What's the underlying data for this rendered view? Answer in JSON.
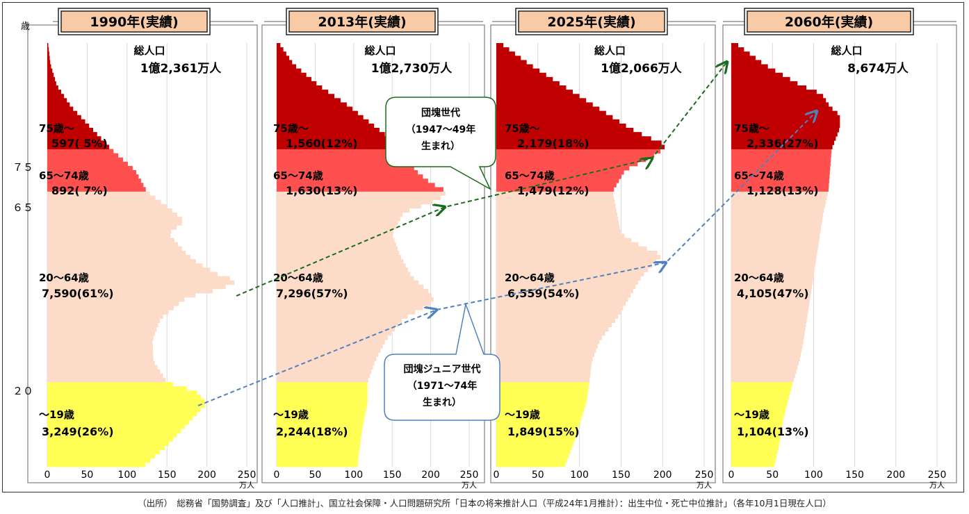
{
  "age_axis": {
    "unit": "歳",
    "ticks": [
      "７５",
      "６５",
      "２０"
    ]
  },
  "source_text": "（出所）　総務省「国勢調査」及び「人口推計」、国立社会保障・人口問題研究所「日本の将来推計人口（平成24年1月推計）：出生中位・死亡中位推計」（各年10月1日現在人口）",
  "callouts": {
    "dankai": [
      "団塊世代",
      "（1947～49年",
      "生まれ）"
    ],
    "dankai_junior": [
      "団塊ジュニア世代",
      "（1971～74年",
      "生まれ）"
    ]
  },
  "colors": {
    "age_75plus": "#C00000",
    "age_65_74": "#FF5050",
    "age_20_64": "#FCDCC8",
    "age_0_19": "#FFFF55",
    "dankai_arrow": "#1A6B1A",
    "junior_arrow": "#4F81BD",
    "title_fill": "#F8CBA6"
  },
  "chart_data": [
    {
      "type": "bar",
      "orientation": "horizontal",
      "title": "1990年(実績)",
      "total_label": "総人口",
      "total_value": "1億2,361万人",
      "x_ticks": [
        "0",
        "50",
        "100",
        "150",
        "200",
        "250"
      ],
      "x_unit": "万人",
      "xlim": [
        0,
        250
      ],
      "groups": [
        {
          "name": "75歳～",
          "value_label": "597( 5%)",
          "population": 597,
          "percent": 5
        },
        {
          "name": "65～74歳",
          "value_label": "892( 7%)",
          "population": 892,
          "percent": 7
        },
        {
          "name": "20～64歳",
          "value_label": "7,590(61%)",
          "population": 7590,
          "percent": 61
        },
        {
          "name": "～19歳",
          "value_label": "3,249(26%)",
          "population": 3249,
          "percent": 26
        }
      ],
      "profile": [
        [
          0,
          120
        ],
        [
          5,
          150
        ],
        [
          10,
          175
        ],
        [
          15,
          200
        ],
        [
          18,
          185
        ],
        [
          19,
          165
        ],
        [
          20,
          150
        ],
        [
          25,
          133
        ],
        [
          30,
          132
        ],
        [
          35,
          142
        ],
        [
          40,
          175
        ],
        [
          42,
          218
        ],
        [
          44,
          240
        ],
        [
          45,
          218
        ],
        [
          48,
          190
        ],
        [
          50,
          176
        ],
        [
          55,
          152
        ],
        [
          58,
          172
        ],
        [
          60,
          160
        ],
        [
          65,
          125
        ],
        [
          70,
          110
        ],
        [
          75,
          80
        ],
        [
          80,
          55
        ],
        [
          85,
          30
        ],
        [
          90,
          12
        ],
        [
          95,
          4
        ],
        [
          100,
          1
        ]
      ]
    },
    {
      "type": "bar",
      "orientation": "horizontal",
      "title": "2013年(実績)",
      "total_label": "総人口",
      "total_value": "1億2,730万人",
      "x_ticks": [
        "0",
        "50",
        "100",
        "150",
        "200",
        "250"
      ],
      "x_unit": "万人",
      "xlim": [
        0,
        250
      ],
      "groups": [
        {
          "name": "75歳～",
          "value_label": "1,560(12%)",
          "population": 1560,
          "percent": 12
        },
        {
          "name": "65～74歳",
          "value_label": "1,630(13%)",
          "population": 1630,
          "percent": 13
        },
        {
          "name": "20～64歳",
          "value_label": "7,296(57%)",
          "population": 7296,
          "percent": 57
        },
        {
          "name": "～19歳",
          "value_label": "2,244(18%)",
          "population": 2244,
          "percent": 18
        }
      ],
      "profile": [
        [
          0,
          105
        ],
        [
          5,
          108
        ],
        [
          10,
          112
        ],
        [
          15,
          118
        ],
        [
          20,
          118
        ],
        [
          25,
          128
        ],
        [
          30,
          142
        ],
        [
          35,
          165
        ],
        [
          39,
          205
        ],
        [
          41,
          200
        ],
        [
          45,
          175
        ],
        [
          50,
          160
        ],
        [
          55,
          150
        ],
        [
          60,
          165
        ],
        [
          63,
          210
        ],
        [
          65,
          222
        ],
        [
          67,
          200
        ],
        [
          70,
          180
        ],
        [
          75,
          165
        ],
        [
          80,
          130
        ],
        [
          85,
          95
        ],
        [
          90,
          55
        ],
        [
          95,
          22
        ],
        [
          100,
          3
        ]
      ]
    },
    {
      "type": "bar",
      "orientation": "horizontal",
      "title": "2025年(実績)",
      "total_label": "総人口",
      "total_value": "1億2,066万人",
      "x_ticks": [
        "0",
        "50",
        "100",
        "150",
        "200",
        "250"
      ],
      "x_unit": "万人",
      "xlim": [
        0,
        250
      ],
      "groups": [
        {
          "name": "75歳～",
          "value_label": "2,179(18%)",
          "population": 2179,
          "percent": 18
        },
        {
          "name": "65～74歳",
          "value_label": "1,479(12%)",
          "population": 1479,
          "percent": 12
        },
        {
          "name": "20～64歳",
          "value_label": "6,559(54%)",
          "population": 6559,
          "percent": 54
        },
        {
          "name": "～19歳",
          "value_label": "1,849(15%)",
          "population": 1849,
          "percent": 15
        }
      ],
      "profile": [
        [
          0,
          82
        ],
        [
          5,
          92
        ],
        [
          10,
          100
        ],
        [
          15,
          108
        ],
        [
          20,
          112
        ],
        [
          25,
          115
        ],
        [
          30,
          125
        ],
        [
          35,
          145
        ],
        [
          40,
          160
        ],
        [
          45,
          175
        ],
        [
          50,
          200
        ],
        [
          52,
          175
        ],
        [
          55,
          150
        ],
        [
          60,
          145
        ],
        [
          65,
          140
        ],
        [
          70,
          155
        ],
        [
          74,
          195
        ],
        [
          76,
          205
        ],
        [
          78,
          180
        ],
        [
          80,
          160
        ],
        [
          85,
          120
        ],
        [
          90,
          80
        ],
        [
          95,
          40
        ],
        [
          100,
          5
        ]
      ]
    },
    {
      "type": "bar",
      "orientation": "horizontal",
      "title": "2060年(実績)",
      "total_label": "総人口",
      "total_value": "8,674万人",
      "x_ticks": [
        "0",
        "50",
        "100",
        "150",
        "200",
        "250"
      ],
      "x_unit": "万人",
      "xlim": [
        0,
        250
      ],
      "groups": [
        {
          "name": "75歳～",
          "value_label": "2,336(27%)",
          "population": 2336,
          "percent": 27
        },
        {
          "name": "65～74歳",
          "value_label": "1,128(13%)",
          "population": 1128,
          "percent": 13
        },
        {
          "name": "20～64歳",
          "value_label": "4,105(47%)",
          "population": 4105,
          "percent": 47
        },
        {
          "name": "～19歳",
          "value_label": "1,104(13%)",
          "population": 1104,
          "percent": 13
        }
      ],
      "profile": [
        [
          0,
          52
        ],
        [
          5,
          58
        ],
        [
          10,
          62
        ],
        [
          15,
          68
        ],
        [
          20,
          75
        ],
        [
          25,
          83
        ],
        [
          30,
          88
        ],
        [
          35,
          92
        ],
        [
          40,
          96
        ],
        [
          45,
          100
        ],
        [
          50,
          104
        ],
        [
          55,
          108
        ],
        [
          60,
          112
        ],
        [
          65,
          118
        ],
        [
          70,
          120
        ],
        [
          75,
          122
        ],
        [
          80,
          132
        ],
        [
          83,
          132
        ],
        [
          85,
          120
        ],
        [
          88,
          110
        ],
        [
          90,
          85
        ],
        [
          95,
          40
        ],
        [
          100,
          5
        ]
      ]
    }
  ]
}
